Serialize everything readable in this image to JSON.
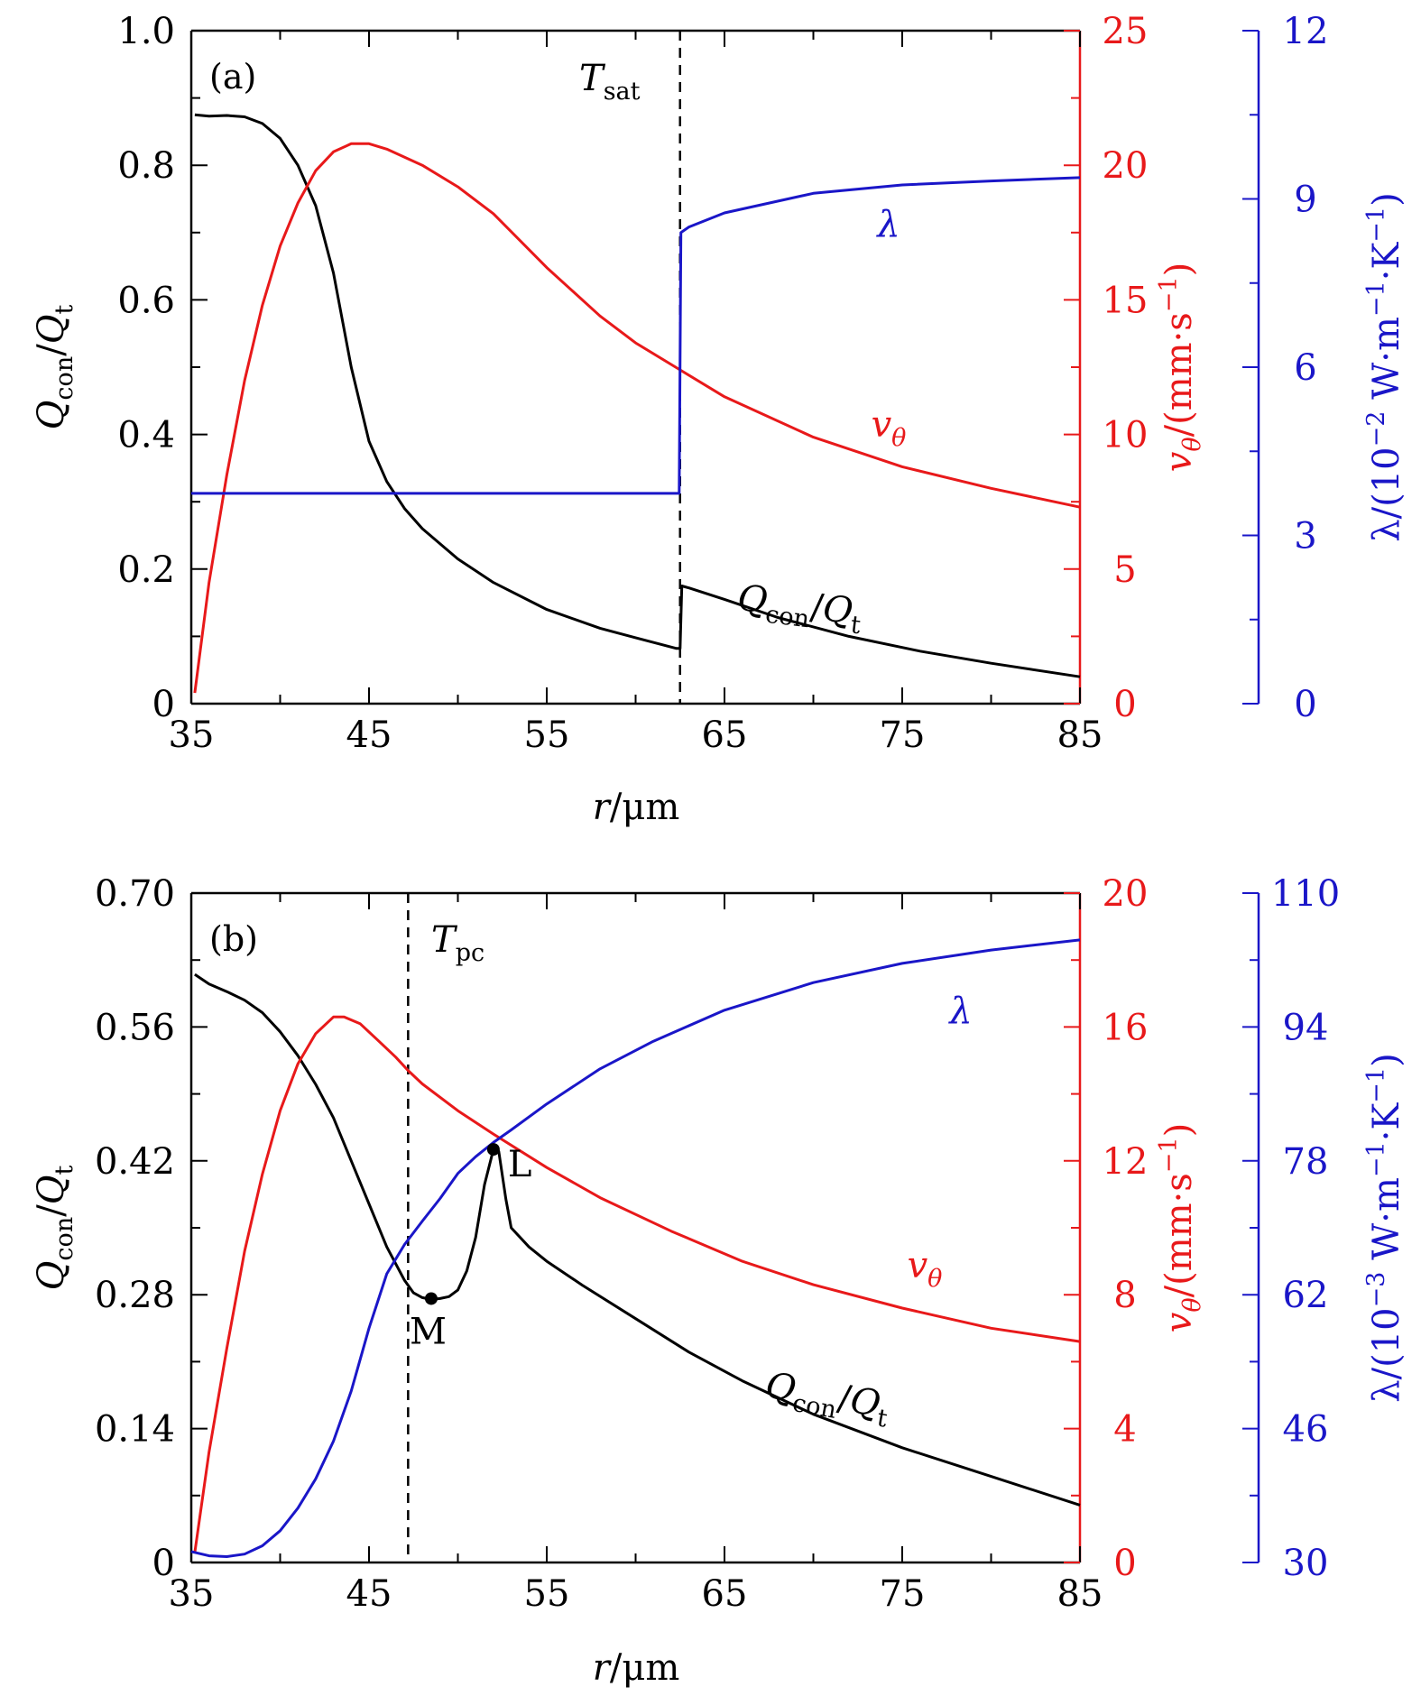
{
  "colors": {
    "black": "#000000",
    "red": "#e8191a",
    "blue": "#1a16c8"
  },
  "chart_data": [
    {
      "type": "line",
      "panel_label": "(a)",
      "xlabel": "r/μm",
      "xlim": [
        35,
        85
      ],
      "xticks": [
        "35",
        "45",
        "55",
        "65",
        "75",
        "85"
      ],
      "y_left": {
        "label": "Qcon/Qt",
        "ylim": [
          0,
          1.0
        ],
        "ticks": [
          "0",
          "0.2",
          "0.4",
          "0.6",
          "0.8",
          "1.0"
        ]
      },
      "y_right1": {
        "label": "vθ/(mm·s−1)",
        "ylim": [
          0,
          25
        ],
        "ticks": [
          "0",
          "5",
          "10",
          "15",
          "20",
          "25"
        ]
      },
      "y_right2": {
        "label": "λ/(10−2 W·m−1·K−1)",
        "ylim": [
          0,
          12
        ],
        "ticks": [
          "0",
          "3",
          "6",
          "9",
          "12"
        ]
      },
      "vline": {
        "x": 62.5,
        "label": "Tsat"
      },
      "series": [
        {
          "name": "Qcon/Qt",
          "axis": "left",
          "color": "black",
          "x": [
            35.2,
            36,
            37,
            38,
            39,
            40,
            41,
            42,
            43,
            44,
            45,
            46,
            47,
            48,
            50,
            52,
            55,
            58,
            60,
            62.3,
            62.5,
            62.6,
            63,
            65,
            68,
            72,
            76,
            80,
            85
          ],
          "y": [
            0.875,
            0.873,
            0.874,
            0.872,
            0.862,
            0.84,
            0.8,
            0.74,
            0.64,
            0.5,
            0.39,
            0.33,
            0.29,
            0.26,
            0.215,
            0.18,
            0.14,
            0.112,
            0.098,
            0.082,
            0.082,
            0.175,
            0.172,
            0.155,
            0.128,
            0.1,
            0.078,
            0.06,
            0.04
          ]
        },
        {
          "name": "vθ",
          "axis": "right1",
          "color": "red",
          "x": [
            35.2,
            36,
            37,
            38,
            39,
            40,
            41,
            42,
            43,
            44,
            45,
            46,
            47,
            48,
            50,
            52,
            55,
            58,
            60,
            62.5,
            65,
            70,
            75,
            80,
            85
          ],
          "y": [
            0.4,
            4.5,
            8.5,
            12.0,
            14.8,
            17.0,
            18.6,
            19.8,
            20.5,
            20.8,
            20.8,
            20.6,
            20.3,
            20.0,
            19.2,
            18.2,
            16.2,
            14.4,
            13.4,
            12.4,
            11.4,
            9.9,
            8.8,
            8.0,
            7.3
          ]
        },
        {
          "name": "λ",
          "axis": "right2",
          "color": "blue",
          "x": [
            35,
            62.45,
            62.55,
            63,
            65,
            70,
            75,
            80,
            85
          ],
          "y": [
            3.75,
            3.75,
            8.4,
            8.5,
            8.75,
            9.1,
            9.25,
            9.32,
            9.38
          ]
        }
      ],
      "annotations": [
        {
          "text": "λ",
          "series": "λ"
        },
        {
          "text": "vθ",
          "series": "vθ"
        },
        {
          "text": "Qcon/Qt",
          "series": "Qcon/Qt"
        }
      ]
    },
    {
      "type": "line",
      "panel_label": "(b)",
      "xlabel": "r/μm",
      "xlim": [
        35,
        85
      ],
      "xticks": [
        "35",
        "45",
        "55",
        "65",
        "75",
        "85"
      ],
      "y_left": {
        "label": "Qcon/Qt",
        "ylim": [
          0,
          0.7
        ],
        "ticks": [
          "0",
          "0.14",
          "0.28",
          "0.42",
          "0.56",
          "0.70"
        ]
      },
      "y_right1": {
        "label": "vθ/(mm·s−1)",
        "ylim": [
          0,
          20
        ],
        "ticks": [
          "0",
          "4",
          "8",
          "12",
          "16",
          "20"
        ]
      },
      "y_right2": {
        "label": "λ/(10−3 W·m−1·K−1)",
        "ylim": [
          30,
          110
        ],
        "ticks": [
          "30",
          "46",
          "62",
          "78",
          "94",
          "110"
        ]
      },
      "vline": {
        "x": 47.2,
        "label": "Tpc"
      },
      "series": [
        {
          "name": "Qcon/Qt",
          "axis": "left",
          "color": "black",
          "x": [
            35.2,
            36,
            37,
            38,
            39,
            40,
            41,
            42,
            43,
            44,
            45,
            46,
            47,
            47.5,
            48,
            48.5,
            49,
            49.5,
            50,
            50.5,
            51,
            51.5,
            52,
            52.3,
            52.7,
            53,
            54,
            55,
            57,
            60,
            63,
            66,
            70,
            75,
            80,
            85
          ],
          "y": [
            0.615,
            0.605,
            0.597,
            0.588,
            0.575,
            0.555,
            0.53,
            0.5,
            0.465,
            0.42,
            0.375,
            0.33,
            0.295,
            0.282,
            0.277,
            0.275,
            0.276,
            0.278,
            0.285,
            0.305,
            0.34,
            0.395,
            0.432,
            0.43,
            0.38,
            0.35,
            0.33,
            0.315,
            0.29,
            0.255,
            0.22,
            0.19,
            0.155,
            0.12,
            0.09,
            0.06
          ]
        },
        {
          "name": "vθ",
          "axis": "right1",
          "color": "red",
          "x": [
            35.2,
            36,
            37,
            38,
            39,
            40,
            41,
            42,
            43,
            43.6,
            44.5,
            45.5,
            46.5,
            47.2,
            48,
            50,
            52,
            55,
            58,
            62,
            66,
            70,
            75,
            80,
            85
          ],
          "y": [
            0.3,
            3.3,
            6.4,
            9.3,
            11.6,
            13.5,
            14.9,
            15.8,
            16.3,
            16.3,
            16.1,
            15.6,
            15.1,
            14.7,
            14.3,
            13.5,
            12.8,
            11.8,
            10.9,
            9.9,
            9.0,
            8.3,
            7.6,
            7.0,
            6.6
          ]
        },
        {
          "name": "λ",
          "axis": "right2",
          "color": "blue",
          "x": [
            35,
            36,
            37,
            38,
            39,
            40,
            41,
            42,
            43,
            44,
            45,
            46,
            47,
            48,
            49,
            50,
            51,
            52,
            53,
            55,
            58,
            61,
            65,
            70,
            75,
            80,
            85
          ],
          "y": [
            31.3,
            30.8,
            30.7,
            31.0,
            32.0,
            33.8,
            36.5,
            40.0,
            44.5,
            50.5,
            58.0,
            64.5,
            68.0,
            70.8,
            73.5,
            76.5,
            78.5,
            80.2,
            81.7,
            84.8,
            89.0,
            92.3,
            96.0,
            99.3,
            101.6,
            103.2,
            104.4
          ]
        }
      ],
      "points": [
        {
          "label": "M",
          "x": 48.5,
          "y": 0.276
        },
        {
          "label": "L",
          "x": 52.0,
          "y": 0.432
        }
      ],
      "annotations": [
        {
          "text": "λ",
          "series": "λ"
        },
        {
          "text": "vθ",
          "series": "vθ"
        },
        {
          "text": "Qcon/Qt",
          "series": "Qcon/Qt"
        }
      ]
    }
  ]
}
